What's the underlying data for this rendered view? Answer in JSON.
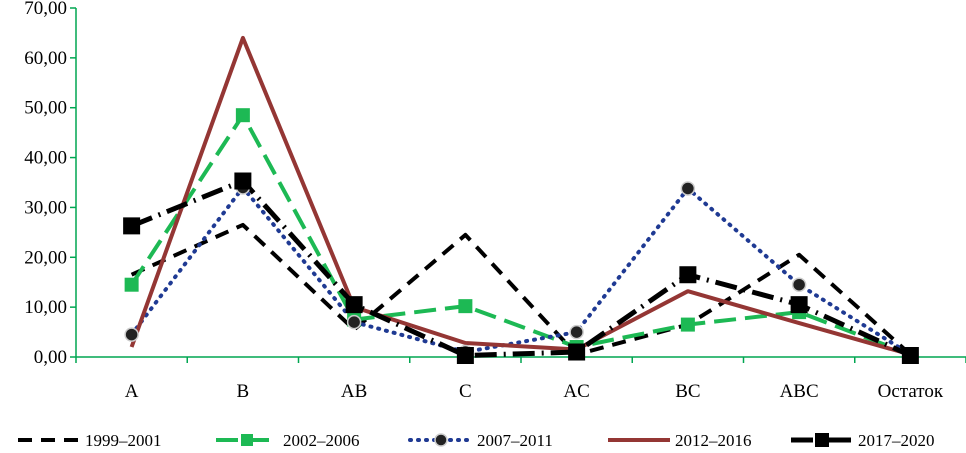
{
  "chart_data": {
    "type": "line",
    "title": "",
    "xlabel": "",
    "ylabel": "",
    "categories": [
      "A",
      "B",
      "AB",
      "C",
      "AC",
      "BC",
      "ABC",
      "Остаток"
    ],
    "ylim": [
      0,
      70
    ],
    "yticks": [
      "0,00",
      "10,00",
      "20,00",
      "30,00",
      "40,00",
      "50,00",
      "60,00",
      "70,00"
    ],
    "ytick_values": [
      0,
      10,
      20,
      30,
      40,
      50,
      60,
      70
    ],
    "axis_color": "#00a651",
    "legend_position": "bottom",
    "series": [
      {
        "name": "1999–2001",
        "values": [
          16.5,
          26.5,
          5.5,
          24.5,
          0.5,
          6.5,
          20.5,
          0.5
        ],
        "color": "#000000",
        "style": "dash",
        "marker": "none"
      },
      {
        "name": "2002–2006",
        "values": [
          14.5,
          48.5,
          7.5,
          10.2,
          2.0,
          6.5,
          9.0,
          0.5
        ],
        "color": "#1db954",
        "style": "longdash",
        "marker": "square"
      },
      {
        "name": "2007–2011",
        "values": [
          4.5,
          34.0,
          7.0,
          1.0,
          5.0,
          33.8,
          14.5,
          0.5
        ],
        "color": "#1f3a93",
        "style": "dot",
        "marker": "circle"
      },
      {
        "name": "2012–2016",
        "values": [
          2.0,
          64.0,
          10.0,
          2.8,
          1.5,
          13.2,
          6.8,
          0.5
        ],
        "color": "#943634",
        "style": "solid",
        "marker": "none"
      },
      {
        "name": "2017–2020",
        "values": [
          26.3,
          35.3,
          10.5,
          0.3,
          1.0,
          16.5,
          10.5,
          0.3
        ],
        "color": "#000000",
        "style": "dashdot",
        "marker": "bigsquare"
      }
    ]
  }
}
